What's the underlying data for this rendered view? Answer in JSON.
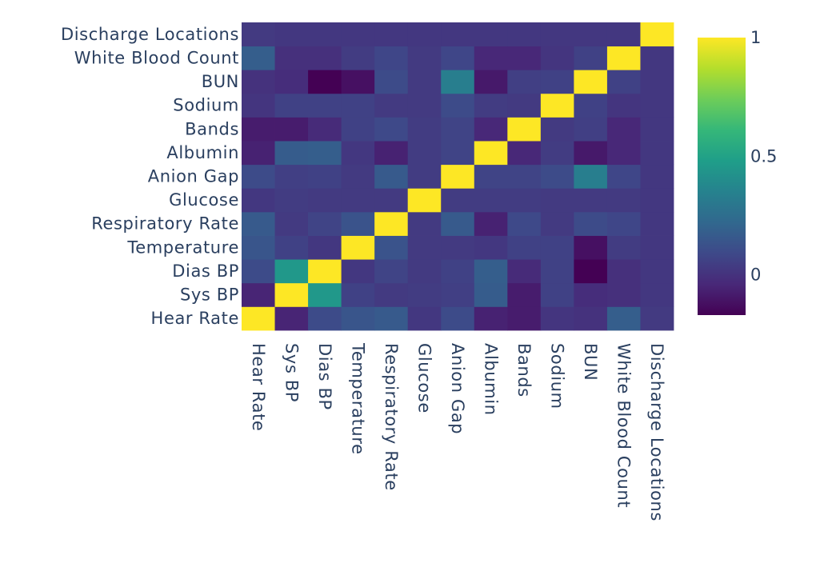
{
  "chart_data": {
    "type": "heatmap",
    "title": "",
    "xlabel": "",
    "ylabel": "",
    "variables": [
      "Hear Rate",
      "Sys BP",
      "Dias BP",
      "Temperature",
      "Respiratory Rate",
      "Glucose",
      "Anion Gap",
      "Albumin",
      "Bands",
      "Sodium",
      "BUN",
      "White Blood Count",
      "Discharge Locations"
    ],
    "x": [
      "Hear Rate",
      "Sys BP",
      "Dias BP",
      "Temperature",
      "Respiratory Rate",
      "Glucose",
      "Anion Gap",
      "Albumin",
      "Bands",
      "Sodium",
      "BUN",
      "White Blood Count",
      "Discharge Locations"
    ],
    "y": [
      "Hear Rate",
      "Sys BP",
      "Dias BP",
      "Temperature",
      "Respiratory Rate",
      "Glucose",
      "Anion Gap",
      "Albumin",
      "Bands",
      "Sodium",
      "BUN",
      "White Blood Count",
      "Discharge Locations"
    ],
    "z": [
      [
        1.0,
        -0.05,
        0.1,
        0.14,
        0.16,
        0.02,
        0.1,
        -0.06,
        -0.08,
        0.01,
        0.0,
        0.18,
        0.03
      ],
      [
        -0.05,
        1.0,
        0.45,
        0.06,
        0.03,
        0.04,
        0.05,
        0.17,
        -0.08,
        0.06,
        -0.02,
        -0.01,
        0.02
      ],
      [
        0.1,
        0.45,
        1.0,
        0.02,
        0.07,
        0.03,
        0.06,
        0.18,
        -0.03,
        0.06,
        -0.17,
        -0.01,
        0.02
      ],
      [
        0.14,
        0.06,
        0.02,
        1.0,
        0.13,
        0.03,
        0.03,
        0.02,
        0.06,
        0.06,
        -0.12,
        0.04,
        0.02
      ],
      [
        0.16,
        0.03,
        0.07,
        0.13,
        1.0,
        0.03,
        0.16,
        -0.06,
        0.09,
        0.03,
        0.1,
        0.08,
        0.02
      ],
      [
        0.02,
        0.04,
        0.03,
        0.03,
        0.03,
        1.0,
        0.04,
        0.04,
        0.04,
        0.03,
        0.03,
        0.03,
        0.02
      ],
      [
        0.1,
        0.05,
        0.06,
        0.03,
        0.16,
        0.04,
        1.0,
        0.07,
        0.07,
        0.1,
        0.33,
        0.08,
        0.02
      ],
      [
        -0.06,
        0.17,
        0.18,
        0.02,
        -0.06,
        0.04,
        0.07,
        1.0,
        -0.04,
        0.04,
        -0.09,
        -0.04,
        0.02
      ],
      [
        -0.08,
        -0.08,
        -0.03,
        0.06,
        0.09,
        0.04,
        0.07,
        -0.04,
        1.0,
        0.03,
        0.05,
        -0.04,
        0.02
      ],
      [
        0.01,
        0.06,
        0.06,
        0.06,
        0.03,
        0.03,
        0.1,
        0.04,
        0.03,
        1.0,
        0.06,
        0.01,
        0.02
      ],
      [
        0.0,
        -0.02,
        -0.17,
        -0.12,
        0.1,
        0.03,
        0.33,
        -0.09,
        0.05,
        0.06,
        1.0,
        0.06,
        0.02
      ],
      [
        0.18,
        -0.01,
        -0.01,
        0.04,
        0.08,
        0.03,
        0.08,
        -0.04,
        -0.04,
        0.01,
        0.06,
        1.0,
        0.02
      ],
      [
        0.03,
        0.02,
        0.02,
        0.02,
        0.02,
        0.02,
        0.02,
        0.02,
        0.02,
        0.02,
        0.02,
        0.02,
        1.0
      ]
    ],
    "zmin": -0.17,
    "zmax": 1.0,
    "colorscale": "Viridis",
    "colorbar_ticks": [
      {
        "value": 1,
        "label": "1"
      },
      {
        "value": 0.5,
        "label": "0.5"
      },
      {
        "value": 0,
        "label": "0"
      }
    ],
    "legend_position": "right"
  }
}
